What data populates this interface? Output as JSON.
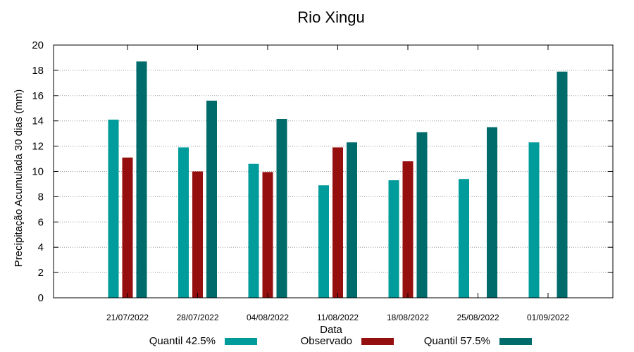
{
  "chart_data": {
    "type": "bar",
    "title": "Rio Xingu",
    "xlabel": "Data",
    "ylabel": "Precipitação Acumulada 30 dias (mm)",
    "ylim": [
      0,
      20
    ],
    "yticks": [
      0,
      2,
      4,
      6,
      8,
      10,
      12,
      14,
      16,
      18,
      20
    ],
    "grid": true,
    "legend_position": "bottom",
    "categories": [
      "21/07/2022",
      "28/07/2022",
      "04/08/2022",
      "11/08/2022",
      "18/08/2022",
      "25/08/2022",
      "01/09/2022"
    ],
    "series": [
      {
        "name": "Quantil 42.5%",
        "color": "#009b9b",
        "values": [
          14.1,
          11.9,
          10.6,
          8.9,
          9.3,
          9.4,
          12.3
        ]
      },
      {
        "name": "Observado",
        "color": "#960f0f",
        "values": [
          11.1,
          10.0,
          9.95,
          11.9,
          10.8,
          null,
          null
        ]
      },
      {
        "name": "Quantil 57.5%",
        "color": "#006b6b",
        "values": [
          18.7,
          15.6,
          14.15,
          12.3,
          13.1,
          13.5,
          17.9
        ]
      }
    ]
  }
}
